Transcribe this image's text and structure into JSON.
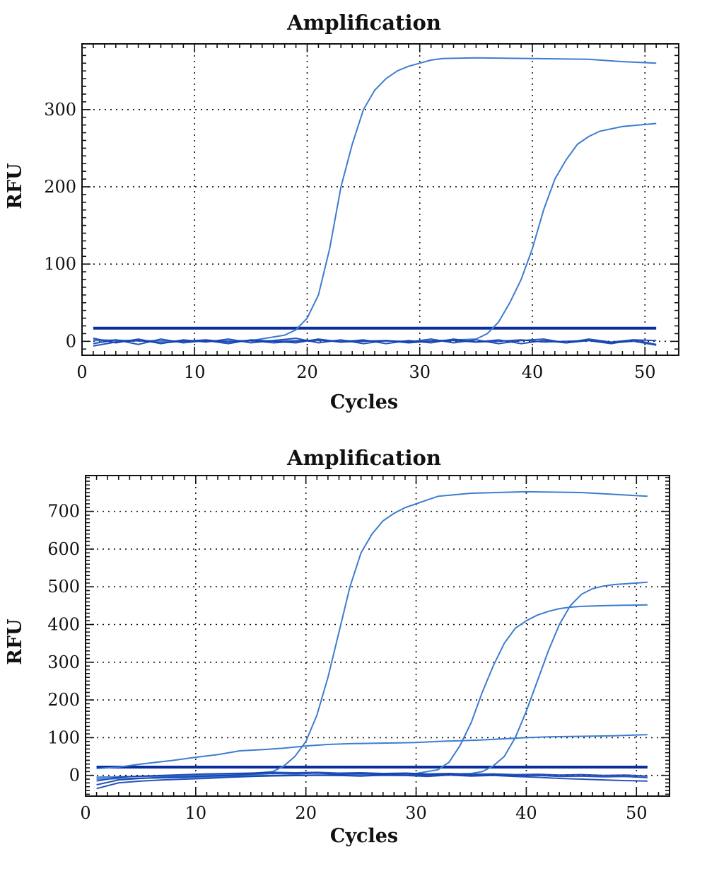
{
  "chart_data": [
    {
      "type": "line",
      "title": "Amplification",
      "xlabel": "Cycles",
      "ylabel": "RFU",
      "xlim": [
        0,
        53
      ],
      "ylim": [
        -18,
        385
      ],
      "xticks": [
        0,
        10,
        20,
        30,
        40,
        50
      ],
      "yticks": [
        0,
        100,
        200,
        300
      ],
      "grid": true,
      "threshold": 17,
      "series": [
        {
          "x": [
            1,
            5,
            10,
            15,
            18,
            19,
            20,
            21,
            22,
            23,
            24,
            25,
            26,
            27,
            28,
            29,
            30,
            31,
            32,
            35,
            40,
            45,
            48,
            51
          ],
          "values": [
            2,
            1,
            0,
            1,
            8,
            15,
            30,
            60,
            120,
            200,
            255,
            300,
            325,
            340,
            350,
            356,
            360,
            364,
            366,
            367,
            366,
            365,
            362,
            360
          ]
        },
        {
          "x": [
            1,
            10,
            20,
            30,
            35,
            36,
            37,
            38,
            39,
            40,
            41,
            42,
            43,
            44,
            45,
            46,
            48,
            51
          ],
          "values": [
            1,
            0,
            1,
            0,
            3,
            10,
            25,
            50,
            80,
            120,
            170,
            210,
            235,
            255,
            265,
            272,
            278,
            282
          ]
        },
        {
          "x": [
            1,
            3,
            5,
            7,
            9,
            11,
            13,
            15,
            17,
            19,
            21,
            23,
            25,
            27,
            29,
            31,
            33,
            35,
            37,
            39,
            41,
            43,
            45,
            47,
            49,
            51
          ],
          "values": [
            -3,
            2,
            -4,
            3,
            -2,
            1,
            -3,
            2,
            0,
            -2,
            3,
            -1,
            2,
            -3,
            1,
            -2,
            3,
            -1,
            2,
            -3,
            1,
            -2,
            3,
            -1,
            2,
            -4
          ]
        },
        {
          "x": [
            1,
            3,
            5,
            7,
            9,
            11,
            13,
            15,
            17,
            19,
            21,
            23,
            25,
            27,
            29,
            31,
            33,
            35,
            37,
            39,
            41,
            43,
            45,
            47,
            49,
            51
          ],
          "values": [
            4,
            -2,
            3,
            -3,
            2,
            -1,
            3,
            -2,
            1,
            4,
            -2,
            2,
            -3,
            1,
            -1,
            3,
            -2,
            2,
            -3,
            1,
            3,
            -2,
            1,
            -3,
            2,
            1
          ]
        },
        {
          "x": [
            1,
            3,
            5,
            7,
            9,
            11,
            13,
            15,
            17,
            19,
            21,
            23,
            25,
            27,
            29,
            31,
            33,
            35,
            37,
            39,
            41,
            43,
            45,
            47,
            49,
            51
          ],
          "values": [
            -6,
            -1,
            1,
            -2,
            0,
            2,
            -1,
            1,
            -2,
            0,
            2,
            -1,
            0,
            1,
            -2,
            0,
            1,
            -1,
            0,
            2,
            -1,
            0,
            1,
            -2,
            0,
            -5
          ]
        }
      ]
    },
    {
      "type": "line",
      "title": "Amplification",
      "xlabel": "Cycles",
      "ylabel": "RFU",
      "xlim": [
        0,
        53
      ],
      "ylim": [
        -55,
        795
      ],
      "xticks": [
        0,
        10,
        20,
        30,
        40,
        50
      ],
      "yticks": [
        0,
        100,
        200,
        300,
        400,
        500,
        600,
        700
      ],
      "grid": true,
      "threshold": 22,
      "series": [
        {
          "x": [
            1,
            10,
            15,
            17,
            18,
            19,
            20,
            21,
            22,
            23,
            24,
            25,
            26,
            27,
            28,
            29,
            30,
            31,
            32,
            35,
            40,
            45,
            48,
            51
          ],
          "values": [
            -5,
            0,
            5,
            10,
            25,
            50,
            90,
            160,
            260,
            380,
            500,
            590,
            640,
            675,
            695,
            710,
            720,
            730,
            740,
            748,
            752,
            750,
            745,
            740
          ]
        },
        {
          "x": [
            1,
            10,
            20,
            30,
            32,
            33,
            34,
            35,
            36,
            37,
            38,
            39,
            40,
            41,
            42,
            43,
            44,
            45,
            47,
            49,
            51
          ],
          "values": [
            -10,
            -5,
            0,
            5,
            15,
            35,
            80,
            140,
            220,
            290,
            350,
            390,
            410,
            425,
            435,
            442,
            446,
            448,
            450,
            451,
            452
          ]
        },
        {
          "x": [
            1,
            10,
            20,
            30,
            35,
            36,
            37,
            38,
            39,
            40,
            41,
            42,
            43,
            44,
            45,
            46,
            47,
            48,
            50,
            51
          ],
          "values": [
            -5,
            0,
            0,
            0,
            5,
            10,
            25,
            50,
            100,
            170,
            250,
            330,
            400,
            450,
            480,
            495,
            502,
            506,
            510,
            512
          ]
        },
        {
          "x": [
            1,
            3,
            5,
            8,
            10,
            12,
            14,
            16,
            18,
            20,
            22,
            24,
            26,
            28,
            30,
            32,
            34,
            36,
            38,
            40,
            42,
            44,
            46,
            48,
            51
          ],
          "values": [
            18,
            22,
            30,
            40,
            48,
            55,
            65,
            68,
            72,
            78,
            82,
            84,
            85,
            86,
            87,
            90,
            92,
            94,
            97,
            100,
            102,
            103,
            104,
            105,
            108
          ]
        },
        {
          "x": [
            1,
            3,
            5,
            7,
            9,
            11,
            13,
            15,
            17,
            19,
            21,
            23,
            25,
            27,
            29,
            31,
            33,
            35,
            37,
            39,
            41,
            43,
            45,
            47,
            49,
            51
          ],
          "values": [
            -35,
            -20,
            -15,
            -12,
            -10,
            -8,
            -5,
            -3,
            -1,
            0,
            1,
            0,
            -2,
            1,
            0,
            -3,
            1,
            -2,
            0,
            -3,
            -5,
            -8,
            -10,
            -12,
            -14,
            -15
          ]
        },
        {
          "x": [
            1,
            3,
            5,
            7,
            9,
            11,
            13,
            15,
            17,
            19,
            21,
            23,
            25,
            27,
            29,
            31,
            33,
            35,
            37,
            39,
            41,
            43,
            45,
            47,
            49,
            51
          ],
          "values": [
            -25,
            -12,
            -8,
            -5,
            -4,
            -2,
            0,
            3,
            5,
            4,
            6,
            3,
            5,
            2,
            4,
            1,
            3,
            0,
            2,
            -1,
            0,
            -3,
            -2,
            -4,
            -3,
            -6
          ]
        },
        {
          "x": [
            1,
            3,
            5,
            7,
            9,
            11,
            13,
            15,
            17,
            19,
            21,
            23,
            25,
            27,
            29,
            31,
            33,
            35,
            37,
            39,
            41,
            43,
            45,
            47,
            49,
            51
          ],
          "values": [
            -15,
            -5,
            -2,
            0,
            2,
            4,
            5,
            6,
            8,
            7,
            8,
            6,
            7,
            5,
            6,
            4,
            5,
            3,
            4,
            2,
            3,
            1,
            2,
            0,
            1,
            -2
          ]
        }
      ]
    }
  ]
}
